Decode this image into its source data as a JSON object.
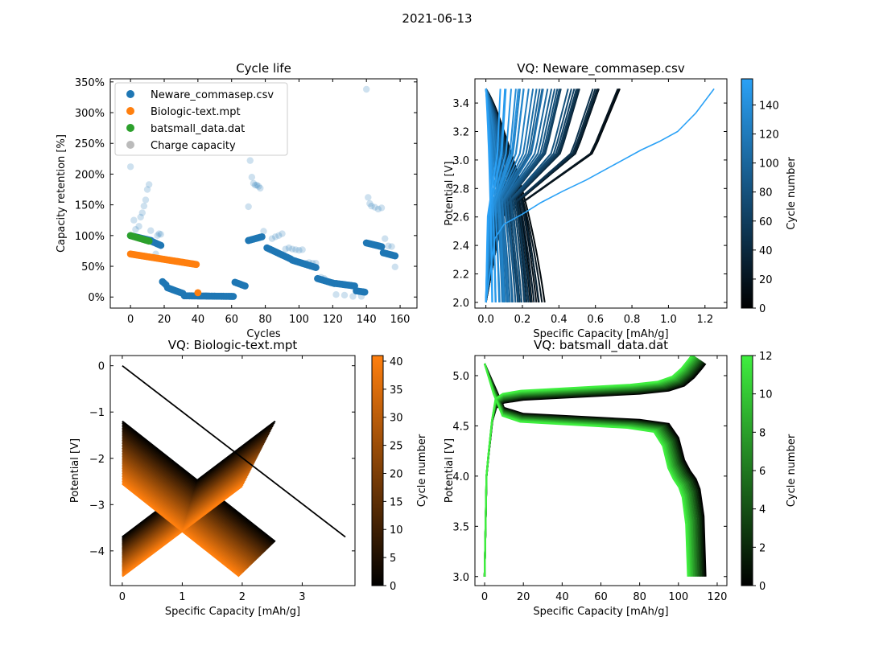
{
  "figure": {
    "suptitle": "2021-06-13"
  },
  "colors": {
    "neware": "#1f77b4",
    "biologic": "#ff7f0e",
    "batsmall": "#2ca02c",
    "charge": "#bbbbbb",
    "neware_cmap": [
      "#000000",
      "#2aa1f6"
    ],
    "biologic_cmap": [
      "#000000",
      "#ff7f0e"
    ],
    "batsmall_cmap": [
      "#000000",
      "#3fef3f"
    ]
  },
  "chart_data": [
    {
      "type": "scatter",
      "title": "Cycle life",
      "xlabel": "Cycles",
      "ylabel": "Capacity retention [%]",
      "xlim": [
        -12,
        170
      ],
      "ylim": [
        -18,
        355
      ],
      "xticks": [
        0,
        20,
        40,
        60,
        80,
        100,
        120,
        140,
        160
      ],
      "yticks": [
        0,
        50,
        100,
        150,
        200,
        250,
        300,
        350
      ],
      "yticklabels": [
        "0%",
        "50%",
        "100%",
        "150%",
        "200%",
        "250%",
        "300%",
        "350%"
      ],
      "legend": {
        "placement": "top-left",
        "entries": [
          {
            "label": "Neware_commasep.csv",
            "color": "#1f77b4"
          },
          {
            "label": "Biologic-text.mpt",
            "color": "#ff7f0e"
          },
          {
            "label": "batsmall_data.dat",
            "color": "#2ca02c"
          },
          {
            "label": "Charge capacity",
            "color": "#bbbbbb"
          }
        ]
      },
      "series": [
        {
          "name": "Neware_commasep.csv",
          "segments": [
            {
              "x0": 0,
              "x1": 12,
              "y0": 100,
              "y1": 92
            },
            {
              "x0": 13,
              "x1": 18,
              "y0": 90,
              "y1": 84
            },
            {
              "x0": 19,
              "x1": 21,
              "y0": 25,
              "y1": 20
            },
            {
              "x0": 22,
              "x1": 31,
              "y0": 15,
              "y1": 6
            },
            {
              "x0": 32,
              "x1": 61,
              "y0": 2,
              "y1": 1
            },
            {
              "x0": 62,
              "x1": 68,
              "y0": 24,
              "y1": 18
            },
            {
              "x0": 70,
              "x1": 78,
              "y0": 92,
              "y1": 98
            },
            {
              "x0": 81,
              "x1": 95,
              "y0": 80,
              "y1": 62
            },
            {
              "x0": 96,
              "x1": 110,
              "y0": 60,
              "y1": 48
            },
            {
              "x0": 111,
              "x1": 121,
              "y0": 30,
              "y1": 22
            },
            {
              "x0": 122,
              "x1": 133,
              "y0": 22,
              "y1": 18
            },
            {
              "x0": 134,
              "x1": 139,
              "y0": 10,
              "y1": 8
            },
            {
              "x0": 140,
              "x1": 149,
              "y0": 88,
              "y1": 82
            },
            {
              "x0": 150,
              "x1": 157,
              "y0": 72,
              "y1": 67
            }
          ]
        },
        {
          "name": "Biologic-text.mpt",
          "segments": [
            {
              "x0": 0,
              "x1": 39,
              "y0": 70,
              "y1": 53
            }
          ],
          "extra": [
            [
              40,
              7
            ]
          ]
        },
        {
          "name": "batsmall_data.dat",
          "segments": [
            {
              "x0": 0,
              "x1": 11,
              "y0": 100,
              "y1": 91
            }
          ]
        },
        {
          "name": "Charge capacity",
          "points": [
            [
              0,
              212
            ],
            [
              2,
              125
            ],
            [
              3,
              110
            ],
            [
              5,
              115
            ],
            [
              6,
              130
            ],
            [
              7,
              137
            ],
            [
              8,
              148
            ],
            [
              9,
              158
            ],
            [
              10,
              175
            ],
            [
              11,
              183
            ],
            [
              12,
              108
            ],
            [
              13,
              92
            ],
            [
              15,
              70
            ],
            [
              16,
              100
            ],
            [
              17,
              103
            ],
            [
              18,
              102
            ],
            [
              70,
              147
            ],
            [
              71,
              222
            ],
            [
              72,
              195
            ],
            [
              73,
              185
            ],
            [
              74,
              182
            ],
            [
              75,
              182
            ],
            [
              76,
              180
            ],
            [
              77,
              177
            ],
            [
              79,
              107
            ],
            [
              84,
              95
            ],
            [
              86,
              98
            ],
            [
              88,
              100
            ],
            [
              90,
              103
            ],
            [
              92,
              78
            ],
            [
              94,
              80
            ],
            [
              96,
              78
            ],
            [
              98,
              77
            ],
            [
              100,
              76
            ],
            [
              102,
              77
            ],
            [
              104,
              55
            ],
            [
              106,
              56
            ],
            [
              108,
              55
            ],
            [
              110,
              55
            ],
            [
              113,
              32
            ],
            [
              115,
              30
            ],
            [
              117,
              25
            ],
            [
              119,
              23
            ],
            [
              122,
              4
            ],
            [
              127,
              3
            ],
            [
              132,
              1
            ],
            [
              137,
              1
            ],
            [
              140,
              338
            ],
            [
              141,
              162
            ],
            [
              142,
              152
            ],
            [
              143,
              148
            ],
            [
              145,
              146
            ],
            [
              147,
              143
            ],
            [
              149,
              145
            ],
            [
              151,
              95
            ],
            [
              153,
              83
            ],
            [
              155,
              82
            ],
            [
              157,
              49
            ]
          ]
        }
      ]
    },
    {
      "type": "line",
      "title": "VQ: Neware_commasep.csv",
      "xlabel": "Specific Capacity [mAh/g]",
      "ylabel": "Potential [V]",
      "xlim": [
        -0.06,
        1.32
      ],
      "ylim": [
        1.96,
        3.57
      ],
      "xticks": [
        0.0,
        0.2,
        0.4,
        0.6,
        0.8,
        1.0,
        1.2
      ],
      "xticklabels": [
        "0.0",
        "0.2",
        "0.4",
        "0.6",
        "0.8",
        "1.0",
        "1.2"
      ],
      "yticks": [
        2.0,
        2.2,
        2.4,
        2.6,
        2.8,
        3.0,
        3.2,
        3.4
      ],
      "yticklabels": [
        "2.0",
        "2.2",
        "2.4",
        "2.6",
        "2.8",
        "3.0",
        "3.2",
        "3.4"
      ],
      "colorbar": {
        "label": "Cycle number",
        "range": [
          0,
          158
        ],
        "ticks": [
          0,
          20,
          40,
          60,
          80,
          100,
          120,
          140
        ]
      },
      "x": [
        0.0,
        0.05,
        0.1,
        0.2,
        0.3,
        0.42,
        0.55,
        0.65,
        0.75,
        0.85,
        0.95,
        1.05,
        1.15,
        1.25
      ],
      "series": [
        {
          "name": "cycle 140",
          "values": [
            2.0,
            2.45,
            2.55,
            2.62,
            2.7,
            2.78,
            2.86,
            2.93,
            3.0,
            3.07,
            3.13,
            3.2,
            3.33,
            3.5
          ]
        }
      ],
      "families": [
        {
          "count": 38,
          "cycle_range": [
            0,
            158
          ],
          "discharge": {
            "x_end_range": [
              0.04,
              0.36
            ],
            "v_start": 3.5,
            "v_knee": 2.7,
            "v_end": 2.0
          },
          "charge": {
            "x_end_range": [
              0.1,
              0.82
            ],
            "v_start": 2.0,
            "v_plateau": 3.05,
            "v_end": 3.5
          }
        }
      ]
    },
    {
      "type": "line",
      "title": "VQ: Biologic-text.mpt",
      "xlabel": "Specific Capacity [mAh/g]",
      "ylabel": "Potential [V]",
      "xlim": [
        -0.2,
        3.88
      ],
      "ylim": [
        -4.75,
        0.22
      ],
      "xticks": [
        0,
        1,
        2,
        3
      ],
      "xticklabels": [
        "0",
        "1",
        "2",
        "3"
      ],
      "yticks": [
        0,
        -1,
        -2,
        -3,
        -4
      ],
      "yticklabels": [
        "0",
        "−1",
        "−2",
        "−3",
        "−4"
      ],
      "colorbar": {
        "label": "Cycle number",
        "range": [
          0,
          41
        ],
        "ticks": [
          0,
          5,
          10,
          15,
          20,
          25,
          30,
          35,
          40
        ]
      },
      "families": [
        {
          "count": 41,
          "cycle_range": [
            0,
            41
          ],
          "discharge": {
            "start": [
              0.0,
              -1.2
            ],
            "end": [
              2.55,
              -3.8
            ],
            "start_shift": [
              0.0,
              -1.35
            ],
            "end_shift": [
              -0.6,
              -0.75
            ]
          },
          "charge": {
            "start": [
              0.0,
              -3.7
            ],
            "end": [
              2.55,
              -1.2
            ],
            "start_shift": [
              0.0,
              -0.85
            ],
            "end_shift": [
              -0.55,
              -1.4
            ]
          }
        },
        {
          "count": 1,
          "cycle_range": [
            0,
            0
          ],
          "discharge": {
            "start": [
              0.0,
              0.0
            ],
            "end": [
              3.72,
              -3.7
            ]
          }
        }
      ]
    },
    {
      "type": "line",
      "title": "VQ: batsmall_data.dat",
      "xlabel": "Specific Capacity [mAh/g]",
      "ylabel": "Potential [V]",
      "xlim": [
        -5,
        125
      ],
      "ylim": [
        2.91,
        5.2
      ],
      "xticks": [
        0,
        20,
        40,
        60,
        80,
        100,
        120
      ],
      "xticklabels": [
        "0",
        "20",
        "40",
        "60",
        "80",
        "100",
        "120"
      ],
      "yticks": [
        3.0,
        3.5,
        4.0,
        4.5,
        5.0
      ],
      "yticklabels": [
        "3.0",
        "3.5",
        "4.0",
        "4.5",
        "5.0"
      ],
      "colorbar": {
        "label": "Cycle number",
        "range": [
          0,
          12
        ],
        "ticks": [
          0,
          2,
          4,
          6,
          8,
          10,
          12
        ]
      },
      "charge": {
        "x": [
          0,
          1,
          2,
          4,
          6,
          10,
          20,
          40,
          60,
          80,
          95,
          103,
          108,
          112,
          114
        ],
        "y": [
          3.0,
          4.0,
          4.2,
          4.55,
          4.68,
          4.73,
          4.76,
          4.78,
          4.8,
          4.82,
          4.85,
          4.9,
          4.98,
          5.07,
          5.12
        ],
        "x_scale_range": [
          1.0,
          0.94
        ],
        "y_shift_range": [
          0.0,
          0.09
        ]
      },
      "discharge": {
        "x": [
          0,
          5,
          10,
          20,
          40,
          60,
          80,
          95,
          100,
          103,
          106,
          109,
          111,
          113,
          114
        ],
        "y": [
          5.12,
          4.9,
          4.68,
          4.62,
          4.6,
          4.58,
          4.56,
          4.52,
          4.38,
          4.16,
          4.05,
          3.97,
          3.87,
          3.6,
          3.0
        ],
        "x_scale_range": [
          1.0,
          0.92
        ],
        "y_shift_range": [
          0.0,
          -0.08
        ]
      },
      "count": 13
    }
  ]
}
